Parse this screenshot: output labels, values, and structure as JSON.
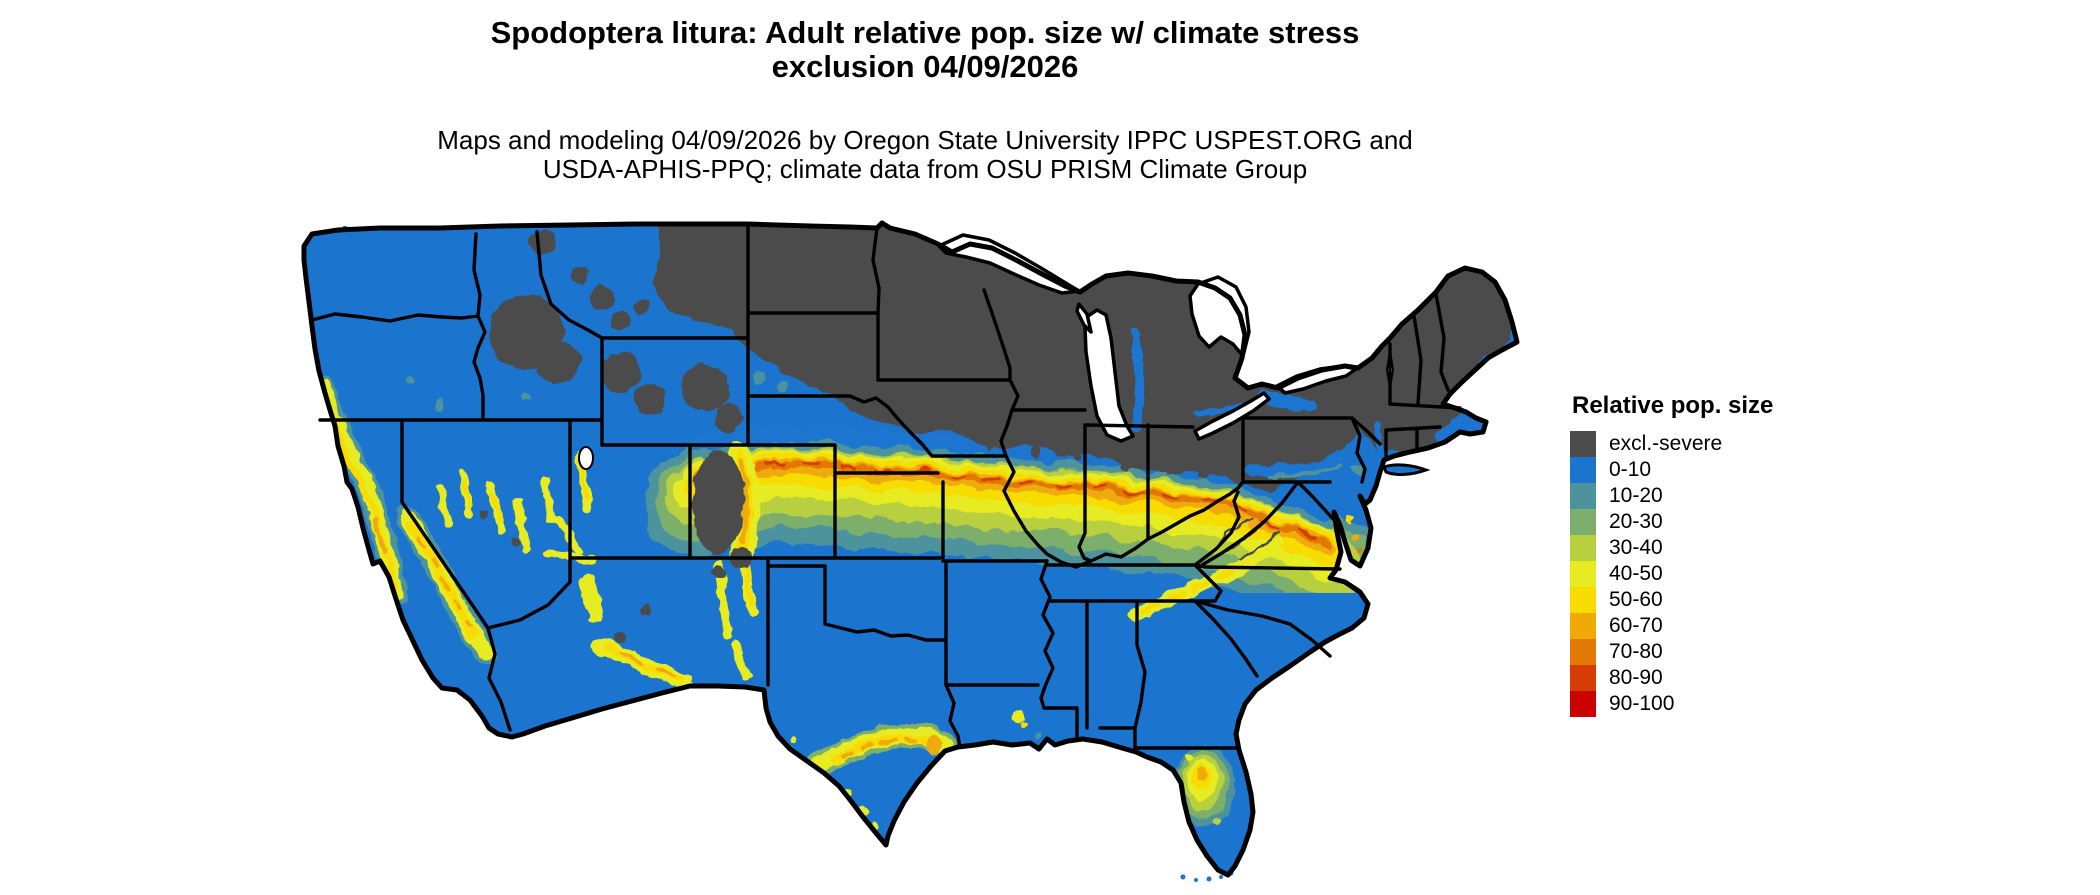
{
  "title": {
    "line1": "Spodoptera litura: Adult relative pop. size w/ climate stress",
    "line2": "exclusion 04/09/2026"
  },
  "subtitle": {
    "line1": "Maps and modeling 04/09/2026 by Oregon State University IPPC USPEST.ORG and",
    "line2": "USDA-APHIS-PPQ; climate data from OSU PRISM Climate Group"
  },
  "legend": {
    "title": "Relative pop. size",
    "items": [
      {
        "label": "excl.-severe",
        "color": "#4B4B4B"
      },
      {
        "label": "0-10",
        "color": "#1B74CE"
      },
      {
        "label": "10-20",
        "color": "#4D939E"
      },
      {
        "label": "20-30",
        "color": "#7CAE6C"
      },
      {
        "label": "30-40",
        "color": "#B8D03F"
      },
      {
        "label": "40-50",
        "color": "#E7EB22"
      },
      {
        "label": "50-60",
        "color": "#F8DC00"
      },
      {
        "label": "60-70",
        "color": "#EFAA08"
      },
      {
        "label": "70-80",
        "color": "#E37804"
      },
      {
        "label": "80-90",
        "color": "#D63C04"
      },
      {
        "label": "90-100",
        "color": "#CA0300"
      }
    ]
  },
  "map": {
    "area_shown": "Contiguous United States with state boundaries",
    "quantity": "Adult relative population size with climate stress exclusion",
    "date": "04/09/2026",
    "summary": {
      "excluded_severe": "Northern tier: Montana (east), North Dakota, South Dakota, Minnesota, Wisconsin, Michigan, Iowa, northern Illinois/Indiana/Ohio, most of New York and Pennsylvania, northern New England, and Rocky Mountain highlands in Idaho, Wyoming and Colorado",
      "base_low": "Most of the West, South and East rendered in the 0-10 class",
      "high_band": "East-west band of 40-80 values from eastern Colorado across Kansas/Nebraska border, Missouri, central Illinois, Indiana, Ohio, West Virginia to Maryland/Virginia",
      "other_highs": "Sierra Nevada and California coast ranges, Nevada/Utah/Arizona/New Mexico mountains, central Texas arc, southern Appalachians, central Florida"
    },
    "water_color": "#FFFFFF",
    "border_color": "#000000"
  }
}
